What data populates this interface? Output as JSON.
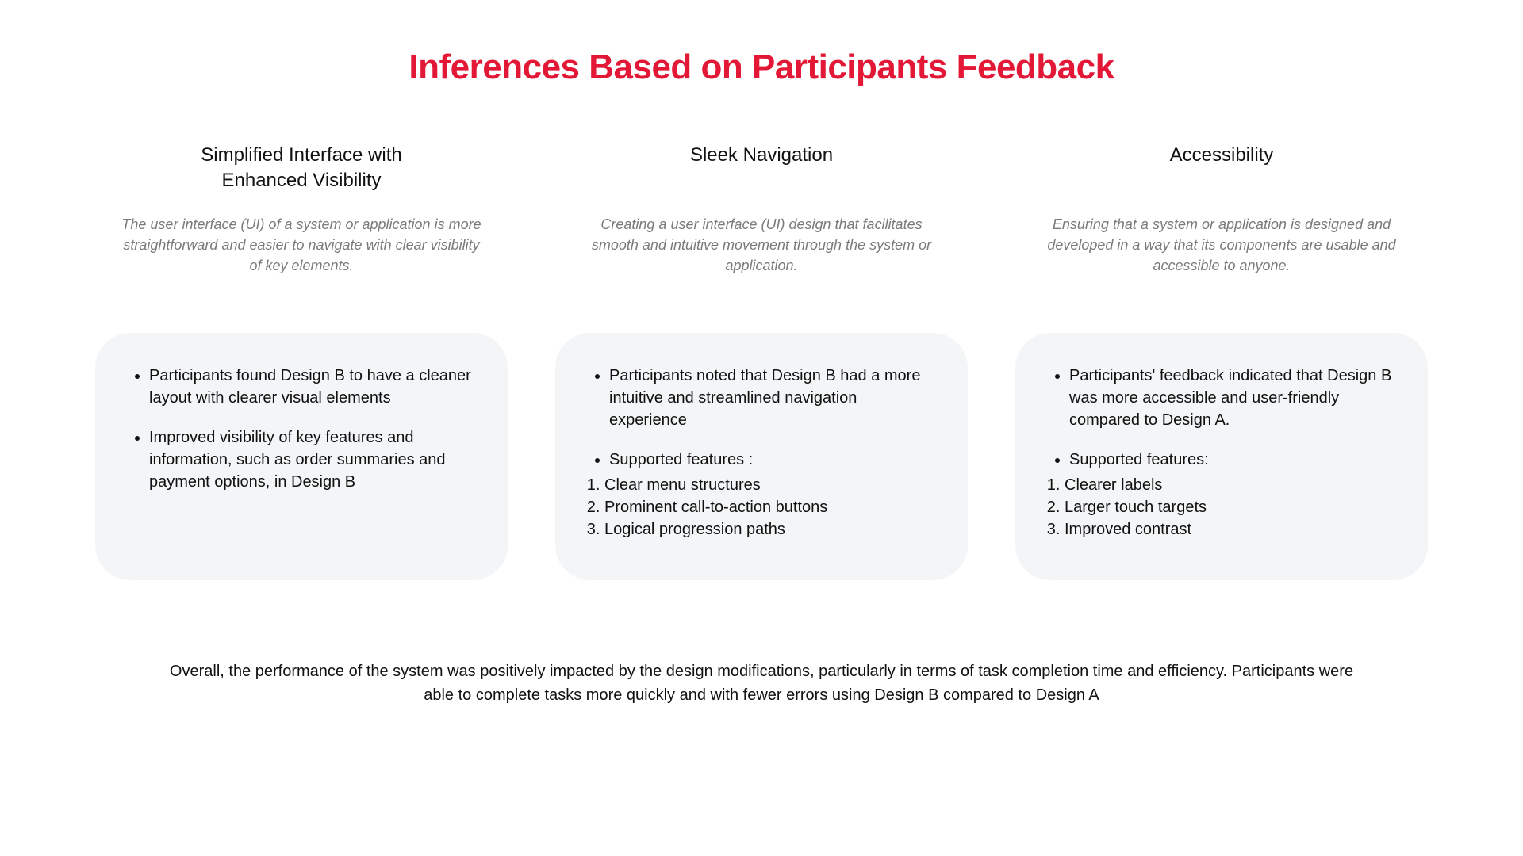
{
  "title": "Inferences Based on Participants Feedback",
  "title_color": "#e31837",
  "background_color": "#ffffff",
  "card_background": "#f3f5f7",
  "text_color": "#111111",
  "subtext_color": "#7a7a7a",
  "columns": [
    {
      "heading": "Simplified Interface with Enhanced Visibility",
      "subtitle": "The user interface (UI) of a system or application is more straightforward and easier to navigate with clear visibility of key elements.",
      "bullets": [
        "Participants found Design B to have a cleaner layout with clearer visual elements",
        " Improved visibility of key features and information, such as order summaries and payment options, in Design B"
      ],
      "numbered_intro": null,
      "numbered": []
    },
    {
      "heading": "Sleek Navigation",
      "subtitle": "Creating a user interface (UI) design that facilitates smooth and intuitive movement through the system or application.",
      "bullets": [
        "Participants noted that Design B had a more intuitive and streamlined navigation experience"
      ],
      "numbered_intro": "Supported features :",
      "numbered": [
        "Clear menu structures",
        "Prominent call-to-action buttons",
        "Logical progression paths"
      ]
    },
    {
      "heading": "Accessibility",
      "subtitle": "Ensuring that a system or application is designed and developed in a way that its components are usable and accessible to anyone.",
      "bullets": [
        "Participants' feedback indicated that Design B was more accessible and user-friendly compared to Design A."
      ],
      "numbered_intro": "Supported features:",
      "numbered": [
        "Clearer labels",
        "Larger touch targets",
        "Improved contrast"
      ]
    }
  ],
  "summary": "Overall, the performance of the system was positively impacted by the design modifications, particularly in terms of task completion time and efficiency. Participants were able to complete tasks more quickly and with fewer errors using Design B compared to Design A"
}
